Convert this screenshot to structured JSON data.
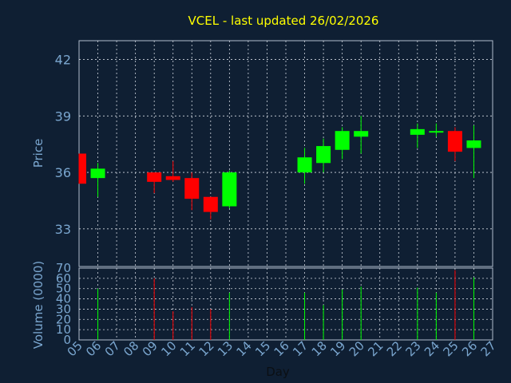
{
  "chart_data": {
    "type": "candlestick",
    "title": "VCEL - last updated 26/02/2026",
    "price_panel": {
      "ylabel": "Price",
      "ylim": [
        31.0,
        43.0
      ],
      "yticks": [
        33,
        36,
        39,
        42
      ]
    },
    "volume_panel": {
      "ylabel": "Volume (0000)",
      "ylim": [
        0,
        70
      ],
      "yticks": [
        0,
        10,
        20,
        30,
        40,
        50,
        60,
        70
      ]
    },
    "xlabel": "Day",
    "x_ticks": [
      "05",
      "06",
      "07",
      "08",
      "09",
      "10",
      "11",
      "12",
      "13",
      "14",
      "15",
      "16",
      "17",
      "18",
      "19",
      "20",
      "21",
      "22",
      "23",
      "24",
      "25",
      "26",
      "27"
    ],
    "candles": [
      {
        "day": "05",
        "open": 37.0,
        "high": 37.0,
        "low": 35.4,
        "close": 35.4,
        "volume": 0
      },
      {
        "day": "06",
        "open": 35.7,
        "high": 36.5,
        "low": 34.7,
        "close": 36.2,
        "volume": 50
      },
      {
        "day": "09",
        "open": 36.0,
        "high": 36.0,
        "low": 34.9,
        "close": 35.5,
        "volume": 60
      },
      {
        "day": "10",
        "open": 35.8,
        "high": 36.6,
        "low": 35.5,
        "close": 35.6,
        "volume": 28
      },
      {
        "day": "11",
        "open": 35.7,
        "high": 36.0,
        "low": 34.0,
        "close": 34.6,
        "volume": 32
      },
      {
        "day": "12",
        "open": 34.7,
        "high": 34.7,
        "low": 33.5,
        "close": 33.9,
        "volume": 30
      },
      {
        "day": "13",
        "open": 34.2,
        "high": 36.1,
        "low": 34.1,
        "close": 36.0,
        "volume": 46
      },
      {
        "day": "17",
        "open": 36.0,
        "high": 37.3,
        "low": 35.4,
        "close": 36.8,
        "volume": 46
      },
      {
        "day": "18",
        "open": 36.5,
        "high": 37.8,
        "low": 36.0,
        "close": 37.4,
        "volume": 34
      },
      {
        "day": "19",
        "open": 37.2,
        "high": 38.4,
        "low": 36.7,
        "close": 38.2,
        "volume": 49
      },
      {
        "day": "20",
        "open": 37.9,
        "high": 39.0,
        "low": 37.0,
        "close": 38.2,
        "volume": 52
      },
      {
        "day": "23",
        "open": 38.0,
        "high": 38.6,
        "low": 37.3,
        "close": 38.3,
        "volume": 51
      },
      {
        "day": "24",
        "open": 38.2,
        "high": 38.6,
        "low": 37.9,
        "close": 38.2,
        "volume": 46
      },
      {
        "day": "25",
        "open": 38.2,
        "high": 38.4,
        "low": 36.6,
        "close": 37.1,
        "volume": 68
      },
      {
        "day": "26",
        "open": 37.3,
        "high": 38.5,
        "low": 35.7,
        "close": 37.7,
        "volume": 61
      }
    ],
    "colors": {
      "background": "#0f1f33",
      "plot_border": "#b0bccc",
      "grid": "#d0d6df",
      "title": "#ffff00",
      "axis_text": "#7aa6cf",
      "up": "#00ff00",
      "down": "#ff0000",
      "wick_up": "#00ff00",
      "wick_down": "#ff0000"
    },
    "grid": true
  }
}
